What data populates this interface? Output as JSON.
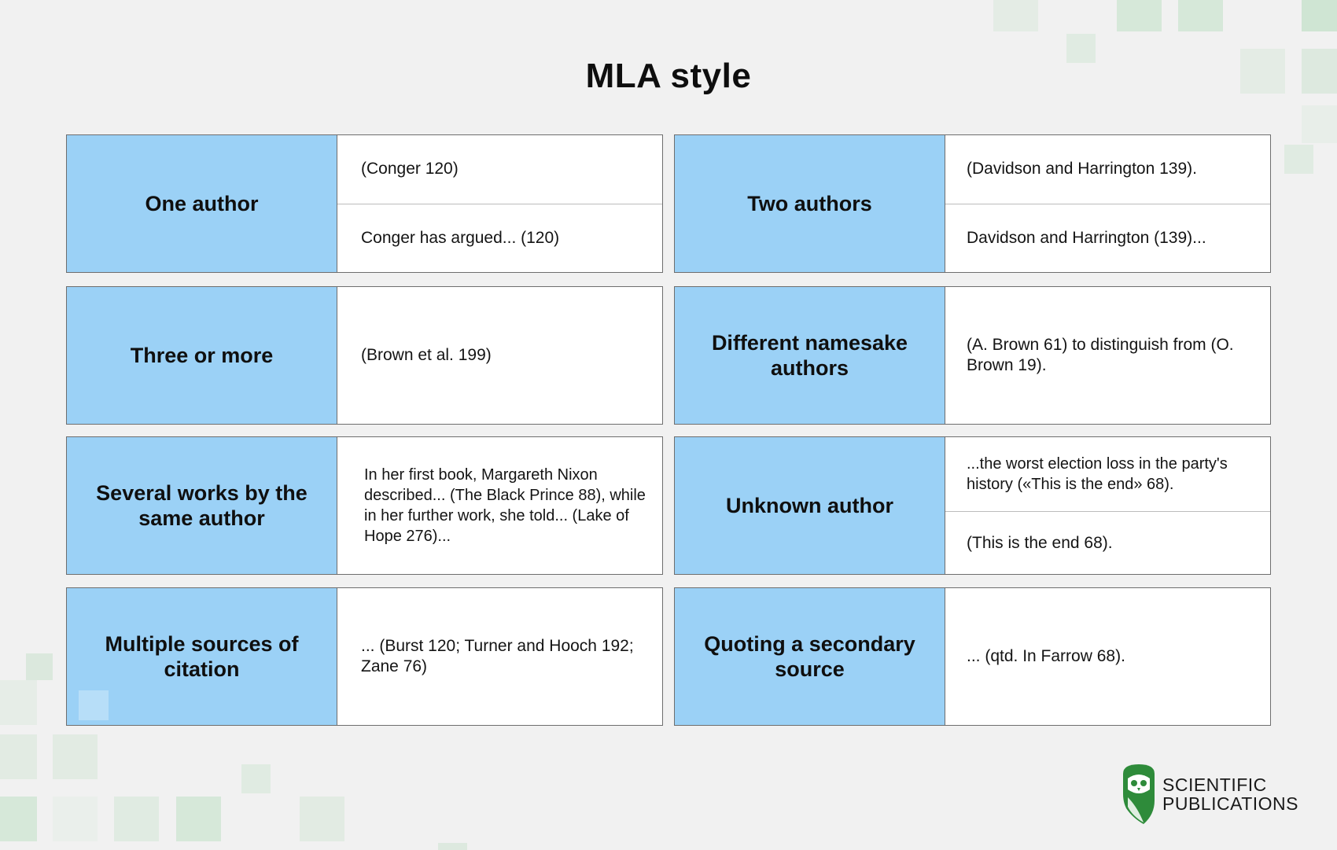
{
  "title": "MLA style",
  "cards": [
    {
      "label": "One author",
      "cells": [
        "(Conger 120)",
        "Conger has argued... (120)"
      ]
    },
    {
      "label": "Two authors",
      "cells": [
        "(Davidson and Harrington 139).",
        "Davidson and Harrington (139)..."
      ]
    },
    {
      "label": "Three or more",
      "cells": [
        "(Brown et al. 199)"
      ]
    },
    {
      "label": "Different namesake authors",
      "cells": [
        "(A. Brown 61) to distinguish from (O. Brown 19)."
      ]
    },
    {
      "label": "Several works by the same author",
      "cells": [
        "In her first book, Margareth Nixon described... (The Black Prince 88), while in her further work, she told... (Lake of Hope 276)..."
      ]
    },
    {
      "label": "Unknown author",
      "cells": [
        "...the worst election loss in the party's history («This is the end» 68).",
        "(This is the end 68)."
      ]
    },
    {
      "label": "Multiple sources of citation",
      "cells": [
        "... (Burst 120; Turner and Hooch 192; Zane 76)"
      ]
    },
    {
      "label": "Quoting a secondary source",
      "cells": [
        "... (qtd. In Farrow 68)."
      ]
    }
  ],
  "logo": {
    "line1": "SCIENTIFIC",
    "line2": "PUBLICATIONS",
    "icon": "owl-icon"
  },
  "colors": {
    "label_bg": "#9bd1f6",
    "page_bg": "#f1f1f1",
    "accent_green": "#2e8b3a"
  }
}
